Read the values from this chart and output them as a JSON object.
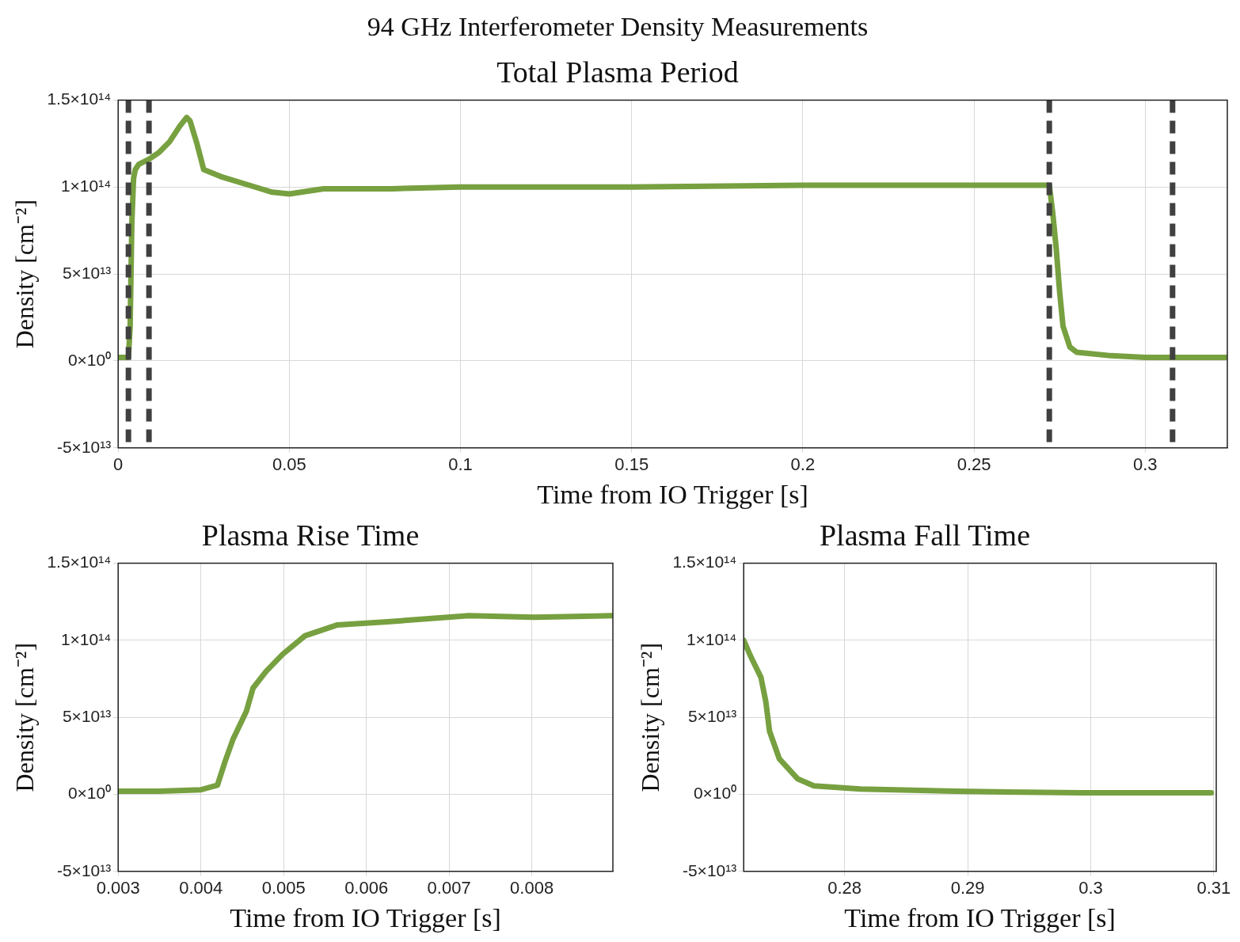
{
  "chart_data": [
    {
      "type": "line",
      "title": "94 GHz Interferometer Density Measurements",
      "subtitle": "Total Plasma Period",
      "xlabel": "Time from IO Trigger [s]",
      "ylabel": "Density [cm⁻²]",
      "xlim": [
        0,
        0.324
      ],
      "xticks": [
        0,
        0.05,
        0.1,
        0.15,
        0.2,
        0.25,
        0.3
      ],
      "ylim": [
        -50000000000000.0,
        150000000000000.0
      ],
      "yticks": [
        {
          "value": -50000000000000.0,
          "label": "-5×10¹³"
        },
        {
          "value": 0,
          "label": "0×10⁰"
        },
        {
          "value": 50000000000000.0,
          "label": "5×10¹³"
        },
        {
          "value": 100000000000000.0,
          "label": "1×10¹⁴"
        },
        {
          "value": 150000000000000.0,
          "label": "1.5×10¹⁴"
        }
      ],
      "grid": true,
      "legend": false,
      "line_style": "solid",
      "marker": "none",
      "ref_lines": [
        {
          "axis": "x",
          "value": 0.003,
          "color": "#404040",
          "line_style": "dashed"
        },
        {
          "axis": "x",
          "value": 0.009,
          "color": "#404040",
          "line_style": "dashed"
        },
        {
          "axis": "x",
          "value": 0.272,
          "color": "#404040",
          "line_style": "dashed"
        },
        {
          "axis": "x",
          "value": 0.308,
          "color": "#404040",
          "line_style": "dashed"
        }
      ],
      "series": [
        {
          "color": "#77a040",
          "x": [
            0,
            0.003,
            0.0035,
            0.004,
            0.0045,
            0.005,
            0.006,
            0.009,
            0.012,
            0.015,
            0.018,
            0.02,
            0.021,
            0.023,
            0.025,
            0.03,
            0.04,
            0.045,
            0.05,
            0.06,
            0.08,
            0.1,
            0.15,
            0.2,
            0.25,
            0.272,
            0.273,
            0.274,
            0.275,
            0.276,
            0.278,
            0.28,
            0.29,
            0.3,
            0.324
          ],
          "values": [
            2000000000000.0,
            2000000000000.0,
            20000000000000.0,
            80000000000000.0,
            105000000000000.0,
            110000000000000.0,
            113000000000000.0,
            116000000000000.0,
            120000000000000.0,
            126000000000000.0,
            135000000000000.0,
            140000000000000.0,
            138000000000000.0,
            125000000000000.0,
            110000000000000.0,
            106000000000000.0,
            100000000000000.0,
            97000000000000.0,
            96000000000000.0,
            99000000000000.0,
            99000000000000.0,
            100000000000000.0,
            100000000000000.0,
            101000000000000.0,
            101000000000000.0,
            101000000000000.0,
            85000000000000.0,
            65000000000000.0,
            40000000000000.0,
            20000000000000.0,
            8000000000000.0,
            5000000000000.0,
            3000000000000.0,
            2000000000000.0,
            2000000000000.0
          ]
        }
      ]
    },
    {
      "type": "line",
      "title": "Plasma Rise Time",
      "xlabel": "Time from IO Trigger [s]",
      "ylabel": "Density [cm⁻²]",
      "xlim": [
        0.003,
        0.00898
      ],
      "xticks": [
        0.003,
        0.004,
        0.005,
        0.006,
        0.007,
        0.008
      ],
      "ylim": [
        -50000000000000.0,
        150000000000000.0
      ],
      "yticks": [
        {
          "value": -50000000000000.0,
          "label": "-5×10¹³"
        },
        {
          "value": 0,
          "label": "0×10⁰"
        },
        {
          "value": 50000000000000.0,
          "label": "5×10¹³"
        },
        {
          "value": 100000000000000.0,
          "label": "1×10¹⁴"
        },
        {
          "value": 150000000000000.0,
          "label": "1.5×10¹⁴"
        }
      ],
      "grid": true,
      "legend": false,
      "line_style": "solid",
      "marker": "none",
      "series": [
        {
          "color": "#77a040",
          "x": [
            0.003,
            0.0035,
            0.004,
            0.0042,
            0.00429,
            0.00439,
            0.00455,
            0.00463,
            0.00479,
            0.00499,
            0.00526,
            0.00565,
            0.00625,
            0.00724,
            0.00803,
            0.00897
          ],
          "values": [
            2000000000000.0,
            2000000000000.0,
            3000000000000.0,
            6000000000000.0,
            21000000000000.0,
            36000000000000.0,
            54000000000000.0,
            69000000000000.0,
            80000000000000.0,
            91000000000000.0,
            103000000000000.0,
            110000000000000.0,
            112000000000000.0,
            116000000000000.0,
            115000000000000.0,
            116000000000000.0
          ]
        }
      ]
    },
    {
      "type": "line",
      "title": "Plasma Fall Time",
      "xlabel": "Time from IO Trigger [s]",
      "ylabel": "Density [cm⁻²]",
      "xlim": [
        0.2718,
        0.3102
      ],
      "xticks": [
        0.28,
        0.29,
        0.3,
        0.31
      ],
      "ylim": [
        -50000000000000.0,
        150000000000000.0
      ],
      "yticks": [
        {
          "value": -50000000000000.0,
          "label": "-5×10¹³"
        },
        {
          "value": 0,
          "label": "0×10⁰"
        },
        {
          "value": 50000000000000.0,
          "label": "5×10¹³"
        },
        {
          "value": 100000000000000.0,
          "label": "1×10¹⁴"
        },
        {
          "value": 150000000000000.0,
          "label": "1.5×10¹⁴"
        }
      ],
      "grid": true,
      "legend": false,
      "line_style": "solid",
      "marker": "none",
      "series": [
        {
          "color": "#77a040",
          "x": [
            0.2718,
            0.2724,
            0.2732,
            0.2736,
            0.2739,
            0.2747,
            0.2762,
            0.2775,
            0.2813,
            0.289,
            0.2992,
            0.3098
          ],
          "values": [
            100000000000000.0,
            89000000000000.0,
            76000000000000.0,
            60000000000000.0,
            41000000000000.0,
            23000000000000.0,
            10000000000000.0,
            5500000000000.0,
            3500000000000.0,
            2000000000000.0,
            1000000000000.0,
            1000000000000.0
          ]
        }
      ]
    }
  ]
}
